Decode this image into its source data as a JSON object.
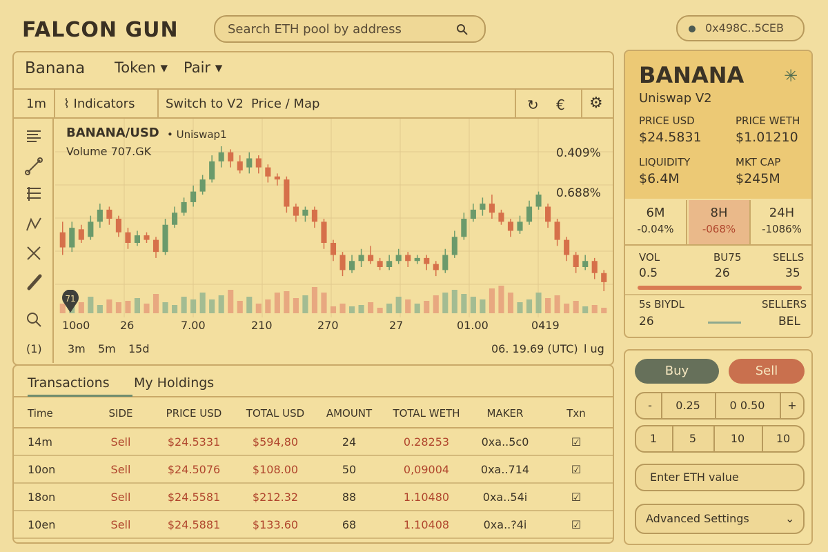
{
  "app": {
    "title": "FALCON GUN"
  },
  "search": {
    "placeholder": "Search ETH pool by address"
  },
  "wallet": {
    "address": "0x498C..5CEB"
  },
  "pair": {
    "name": "Banana",
    "token_tab": "Token",
    "pair_tab": "Pair"
  },
  "toolbar": {
    "interval": "1m",
    "indicators": "Indicators",
    "switch": "Switch to V2",
    "price_map": "Price / Map"
  },
  "chart_header": {
    "title": "BANANA/USD",
    "dex": "• Uniswap1",
    "volume": "Volume  707.GK",
    "marker": "71",
    "pct1": "0.409%",
    "pct2": "0.688%"
  },
  "chart_footer": {
    "x_labels": [
      "10o0",
      "26",
      "7.00",
      "210",
      "270",
      "27",
      "01.00",
      "0419"
    ],
    "timeframes": [
      "(1)",
      "3m",
      "5m",
      "15d"
    ],
    "time": "06. 19.69 (UTC)",
    "log": "l ug"
  },
  "chart_data": {
    "type": "candlestick",
    "title": "BANANA/USD",
    "series": [
      {
        "open": 24.55,
        "close": 24.45,
        "high": 24.62,
        "low": 24.4
      },
      {
        "open": 24.45,
        "close": 24.58,
        "high": 24.62,
        "low": 24.42
      },
      {
        "open": 24.57,
        "close": 24.5,
        "high": 24.6,
        "low": 24.48
      },
      {
        "open": 24.52,
        "close": 24.62,
        "high": 24.66,
        "low": 24.5
      },
      {
        "open": 24.62,
        "close": 24.7,
        "high": 24.74,
        "low": 24.58
      },
      {
        "open": 24.7,
        "close": 24.64,
        "high": 24.72,
        "low": 24.6
      },
      {
        "open": 24.64,
        "close": 24.55,
        "high": 24.66,
        "low": 24.52
      },
      {
        "open": 24.55,
        "close": 24.48,
        "high": 24.58,
        "low": 24.44
      },
      {
        "open": 24.48,
        "close": 24.53,
        "high": 24.56,
        "low": 24.46
      },
      {
        "open": 24.53,
        "close": 24.5,
        "high": 24.55,
        "low": 24.48
      },
      {
        "open": 24.5,
        "close": 24.42,
        "high": 24.52,
        "low": 24.38
      },
      {
        "open": 24.42,
        "close": 24.6,
        "high": 24.64,
        "low": 24.4
      },
      {
        "open": 24.6,
        "close": 24.68,
        "high": 24.72,
        "low": 24.58
      },
      {
        "open": 24.68,
        "close": 24.75,
        "high": 24.78,
        "low": 24.66
      },
      {
        "open": 24.75,
        "close": 24.82,
        "high": 24.86,
        "low": 24.72
      },
      {
        "open": 24.82,
        "close": 24.9,
        "high": 24.93,
        "low": 24.8
      },
      {
        "open": 24.9,
        "close": 25.02,
        "high": 25.06,
        "low": 24.88
      },
      {
        "open": 25.02,
        "close": 25.08,
        "high": 25.12,
        "low": 24.98
      },
      {
        "open": 25.08,
        "close": 25.02,
        "high": 25.1,
        "low": 24.98
      },
      {
        "open": 25.02,
        "close": 24.96,
        "high": 25.06,
        "low": 24.94
      },
      {
        "open": 24.98,
        "close": 25.04,
        "high": 25.08,
        "low": 24.94
      },
      {
        "open": 25.04,
        "close": 24.98,
        "high": 25.06,
        "low": 24.94
      },
      {
        "open": 24.98,
        "close": 24.92,
        "high": 25.0,
        "low": 24.88
      },
      {
        "open": 24.92,
        "close": 24.9,
        "high": 24.94,
        "low": 24.86
      },
      {
        "open": 24.9,
        "close": 24.72,
        "high": 24.92,
        "low": 24.68
      },
      {
        "open": 24.72,
        "close": 24.66,
        "high": 24.74,
        "low": 24.62
      },
      {
        "open": 24.66,
        "close": 24.7,
        "high": 24.72,
        "low": 24.62
      },
      {
        "open": 24.7,
        "close": 24.62,
        "high": 24.72,
        "low": 24.58
      },
      {
        "open": 24.62,
        "close": 24.48,
        "high": 24.64,
        "low": 24.44
      },
      {
        "open": 24.48,
        "close": 24.4,
        "high": 24.5,
        "low": 24.36
      },
      {
        "open": 24.4,
        "close": 24.3,
        "high": 24.42,
        "low": 24.26
      },
      {
        "open": 24.3,
        "close": 24.36,
        "high": 24.4,
        "low": 24.28
      },
      {
        "open": 24.36,
        "close": 24.4,
        "high": 24.44,
        "low": 24.32
      },
      {
        "open": 24.4,
        "close": 24.36,
        "high": 24.46,
        "low": 24.34
      },
      {
        "open": 24.36,
        "close": 24.32,
        "high": 24.38,
        "low": 24.3
      },
      {
        "open": 24.32,
        "close": 24.36,
        "high": 24.4,
        "low": 24.3
      },
      {
        "open": 24.36,
        "close": 24.4,
        "high": 24.44,
        "low": 24.34
      },
      {
        "open": 24.4,
        "close": 24.36,
        "high": 24.42,
        "low": 24.32
      },
      {
        "open": 24.36,
        "close": 24.38,
        "high": 24.4,
        "low": 24.34
      },
      {
        "open": 24.38,
        "close": 24.34,
        "high": 24.4,
        "low": 24.3
      },
      {
        "open": 24.34,
        "close": 24.3,
        "high": 24.36,
        "low": 24.26
      },
      {
        "open": 24.3,
        "close": 24.4,
        "high": 24.44,
        "low": 24.28
      },
      {
        "open": 24.4,
        "close": 24.52,
        "high": 24.56,
        "low": 24.38
      },
      {
        "open": 24.52,
        "close": 24.64,
        "high": 24.68,
        "low": 24.5
      },
      {
        "open": 24.64,
        "close": 24.7,
        "high": 24.74,
        "low": 24.62
      },
      {
        "open": 24.7,
        "close": 24.74,
        "high": 24.78,
        "low": 24.66
      },
      {
        "open": 24.74,
        "close": 24.68,
        "high": 24.8,
        "low": 24.64
      },
      {
        "open": 24.68,
        "close": 24.62,
        "high": 24.7,
        "low": 24.6
      },
      {
        "open": 24.62,
        "close": 24.56,
        "high": 24.64,
        "low": 24.52
      },
      {
        "open": 24.56,
        "close": 24.62,
        "high": 24.66,
        "low": 24.54
      },
      {
        "open": 24.62,
        "close": 24.72,
        "high": 24.76,
        "low": 24.6
      },
      {
        "open": 24.72,
        "close": 24.8,
        "high": 24.82,
        "low": 24.7
      },
      {
        "open": 24.72,
        "close": 24.62,
        "high": 24.74,
        "low": 24.58
      },
      {
        "open": 24.62,
        "close": 24.5,
        "high": 24.64,
        "low": 24.46
      },
      {
        "open": 24.5,
        "close": 24.4,
        "high": 24.52,
        "low": 24.36
      },
      {
        "open": 24.4,
        "close": 24.32,
        "high": 24.42,
        "low": 24.28
      },
      {
        "open": 24.32,
        "close": 24.36,
        "high": 24.4,
        "low": 24.3
      },
      {
        "open": 24.36,
        "close": 24.28,
        "high": 24.38,
        "low": 24.24
      },
      {
        "open": 24.28,
        "close": 24.22,
        "high": 24.3,
        "low": 24.16
      }
    ],
    "volume": [
      14,
      18,
      16,
      24,
      12,
      20,
      16,
      18,
      22,
      14,
      28,
      16,
      12,
      24,
      20,
      30,
      20,
      26,
      34,
      18,
      24,
      14,
      20,
      30,
      32,
      22,
      26,
      38,
      30,
      10,
      14,
      10,
      12,
      16,
      8,
      14,
      24,
      20,
      14,
      18,
      26,
      30,
      34,
      28,
      24,
      20,
      36,
      40,
      30,
      16,
      20,
      30,
      22,
      26,
      14,
      18,
      10,
      12,
      8
    ]
  },
  "tx_tabs": {
    "transactions": "Transactions",
    "holdings": "My Holdings"
  },
  "tx_table": {
    "headers": [
      "Time",
      "SIDE",
      "PRICE USD",
      "TOTAL USD",
      "AMOUNT",
      "TOTAL WETH",
      "MAKER",
      "Txn"
    ],
    "rows": [
      [
        "14m",
        "Sell",
        "$24.5331",
        "$594,80",
        "24",
        "0.28253",
        "0xa..5c0"
      ],
      [
        "10on",
        "Sell",
        "$24.5076",
        "$108.00",
        "50",
        "0,09004",
        "0xa..714"
      ],
      [
        "18on",
        "Sell",
        "$24.5581",
        "$212.32",
        "88",
        "1.10480",
        "0xa..54i"
      ],
      [
        "10en",
        "Sell",
        "$24.5881",
        "$133.60",
        "68",
        "1.10408",
        "0xa..?4i"
      ]
    ]
  },
  "token_info": {
    "name": "BANANA",
    "dex": "Uniswap V2",
    "price_usd_label": "PRICE USD",
    "price_usd": "$24.5831",
    "price_weth_label": "PRICE WETH",
    "price_weth": "$1.01210",
    "liquidity_label": "LIQUIDITY",
    "liquidity": "$6.4M",
    "mktcap_label": "MKT CAP",
    "mktcap": "$245M",
    "timeframes": [
      {
        "label": "6M",
        "change": "-0.04%"
      },
      {
        "label": "8H",
        "change": "-068%"
      },
      {
        "label": "24H",
        "change": "-1086%"
      }
    ],
    "vol_label": "VOL",
    "vol": "0.5",
    "buys_label": "BU75",
    "buys": "26",
    "sells_label": "SELLS",
    "sells": "35",
    "buyers_label": "5s BIYDL",
    "buyers": "26",
    "sellers_label": "SELLERS",
    "sellers": "BEL"
  },
  "trade": {
    "buy": "Buy",
    "sell": "Sell",
    "minus": "-",
    "amount1": "0.25",
    "amount2": "0 0.50",
    "plus": "+",
    "presets": [
      "1",
      "5",
      "10",
      "10"
    ],
    "input_placeholder": "Enter ETH value",
    "advanced": "Advanced Settings"
  },
  "colors": {
    "up": "#6b9a6b",
    "down": "#d6704a",
    "accent_panel": "#ecc975",
    "buy_btn": "#66705a",
    "sell_btn": "#c9704e"
  }
}
